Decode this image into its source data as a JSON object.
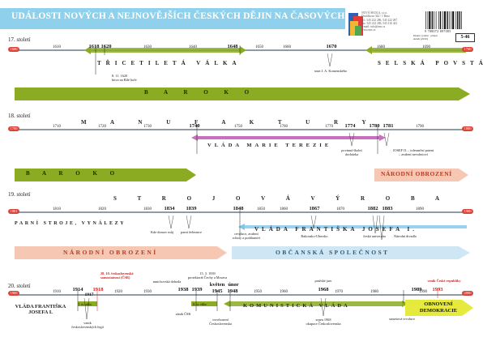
{
  "title": "UDÁLOSTI NOVÝCH A NEJNOVĚJŠÍCH ČESKÝCH DĚJIN NA ČASOVÝCH OSÁCH",
  "publisher": {
    "lines": [
      "NOVÁ ŠKOLA, s.r.o.",
      "Dvořákova 342 / 1 Brno",
      "tel.: 545 222 286, 545 222 287",
      "fax: 545 222 286, 545 216 441",
      "e-mail: info@nns.cz",
      "www.nns.cz"
    ],
    "ean": "9 788072 897085",
    "info": "Druhé vydání · plakát\nskladí (2010)",
    "code": "5-46"
  },
  "rows": [
    {
      "century": "17. století",
      "start": "1600",
      "end": "1700",
      "ticks": [
        "1610",
        "1620",
        "1630",
        "1640",
        "1650",
        "1660",
        "1670",
        "1680",
        "1690"
      ],
      "key_years": [
        "1618",
        "1620",
        "1648",
        "1670"
      ],
      "captions": [
        "TŘICETILETÁ VÁLKA",
        "SELSKÁ POVSTÁNÍ"
      ],
      "notes": [
        "8. 11. 1620\nbitva na Bílé hoře",
        "smrt J. A. Komenského"
      ],
      "band_label": "B A R O K O"
    },
    {
      "century": "18. století",
      "start": "1700",
      "end": "1800",
      "ticks": [
        "1710",
        "1720",
        "1730",
        "1750",
        "1760",
        "1770",
        "1790"
      ],
      "key_years": [
        "1740",
        "1774",
        "1780",
        "1781"
      ],
      "captions": [
        "M A N U F A K T U R Y",
        "VLÁDA MARIE TEREZIE"
      ],
      "notes": [
        "povinná školní\ndocházka",
        "JOSEF II. – toleranční patent\n– zrušení nevolnictví"
      ],
      "band_left": "B A R O K O",
      "band_right": "NÁRODNÍ OBROZENÍ"
    },
    {
      "century": "19. století",
      "start": "1801",
      "end": "1900",
      "ticks": [
        "1810",
        "1820",
        "1830",
        "1850",
        "1860",
        "1870",
        "1890"
      ],
      "key_years": [
        "1834",
        "1839",
        "1848",
        "1867",
        "1882",
        "1883"
      ],
      "captions": [
        "S T R O J O V Á   V Ý R O B A",
        "PARNÍ STROJE, VYNÁLEZY",
        "VLÁDA FRANTIŠKA JOSEFA I."
      ],
      "notes": [
        "Kde domov můj",
        "parní železnice",
        "revoluce, zrušení\nroboty a poddanství",
        "Rakousko-Uhersko",
        "česká univerzita",
        "Národní divadlo"
      ],
      "band_left": "NÁRODNÍ OBROZENÍ",
      "band_right": "OBČANSKÁ SPOLEČNOST"
    },
    {
      "century": "20. století",
      "start": "1900",
      "end": "2000",
      "ticks": [
        "1910",
        "1920",
        "1930",
        "1950",
        "1960",
        "1970",
        "1980",
        "1990"
      ],
      "key_years": [
        "1914",
        "1917",
        "1918",
        "1938",
        "1939",
        "1945",
        "1948",
        "1968",
        "1989",
        "1993"
      ],
      "named_years": [
        "květen",
        "únor"
      ],
      "captions": [
        "VLÁDA FRANTIŠKA JOSEFA I.",
        "KOMUNISTICKÁ VLÁDA",
        "OBNOVENÍ DEMOKRACIE"
      ],
      "war_labels": [
        "I. sv. válka",
        "II. sv. válka"
      ],
      "notes": [
        "28. 10. československá\nsamostatnost (ČSR)",
        "vznik\nčeskoslovenských legií",
        "mnichovská dohoda",
        "15. 3. 1939\nprotektorát Čechy a Morava",
        "zánik ČSR",
        "osvobození\nČeskoslovenska",
        "pražské jaro",
        "srpen 1968\nokupace Československa",
        "sametová revoluce",
        "vznik České republiky"
      ]
    }
  ],
  "colors": {
    "title_band": "#8fd0ec",
    "baroque": "#8aab22",
    "obrozeni": "#f6c8b4",
    "obcanska": "#cfe7f4",
    "demokracie": "#e6ea3c",
    "axis": "#6e7a86",
    "endcap": "#d8453a",
    "lilac": "#c86fbd",
    "green": "#7aa830"
  }
}
